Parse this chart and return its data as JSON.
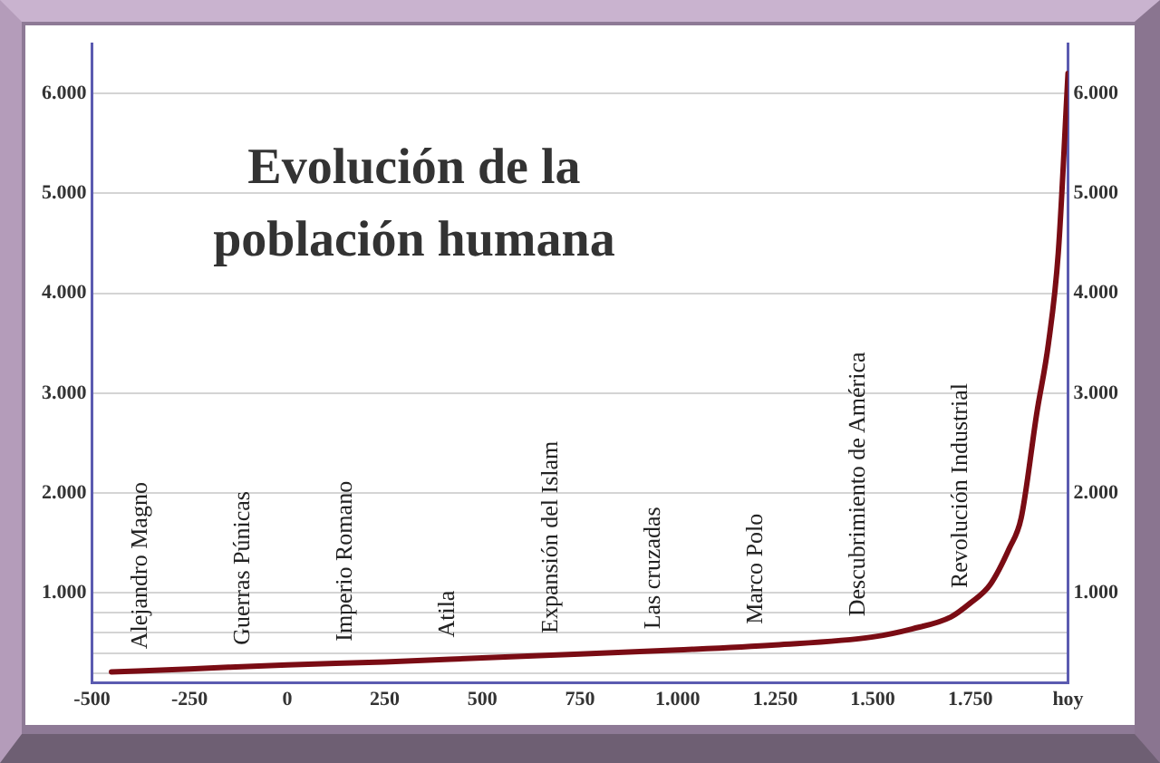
{
  "chart_data": {
    "type": "line",
    "title": "Evolución de la población humana",
    "x": [
      -450,
      -250,
      0,
      250,
      500,
      750,
      1000,
      1250,
      1500,
      1600,
      1700,
      1750,
      1800,
      1850,
      1880,
      1920,
      1950,
      1975,
      2000
    ],
    "series": [
      {
        "color": "#7a0c14",
        "values": [
          210,
          240,
          280,
          310,
          350,
          390,
          430,
          480,
          560,
          640,
          760,
          900,
          1080,
          1450,
          1750,
          2800,
          3500,
          4400,
          6200
        ]
      }
    ],
    "xlim": [
      -500,
      2000
    ],
    "xticks": [
      -500,
      -250,
      0,
      250,
      500,
      750,
      {
        "value": 1000,
        "label": "1.000"
      },
      {
        "value": 1250,
        "label": "1.250"
      },
      {
        "value": 1500,
        "label": "1.500"
      },
      {
        "value": 1750,
        "label": "1.750"
      },
      {
        "value": 2000,
        "label": "hoy"
      }
    ],
    "ylim": [
      100,
      6500
    ],
    "yticks": [
      {
        "value": 200,
        "label": null
      },
      {
        "value": 400,
        "label": null
      },
      {
        "value": 600,
        "label": null
      },
      {
        "value": 800,
        "label": null
      },
      {
        "value": 1000,
        "label": "1.000"
      },
      {
        "value": 2000,
        "label": "2.000"
      },
      {
        "value": 3000,
        "label": "3.000"
      },
      {
        "value": 4000,
        "label": "4.000"
      },
      {
        "value": 5000,
        "label": "5.000"
      },
      {
        "value": 6000,
        "label": "6.000"
      }
    ],
    "y2lim": [
      100,
      6500
    ],
    "y2ticks": [
      {
        "value": 1000,
        "label": "1.000"
      },
      {
        "value": 2000,
        "label": "2.000"
      },
      {
        "value": 3000,
        "label": "3.000"
      },
      {
        "value": 4000,
        "label": "4.000"
      },
      {
        "value": 5000,
        "label": "5.000"
      },
      {
        "value": 6000,
        "label": "6.000"
      }
    ],
    "annotations": [
      "Alejandro Magno",
      "Guerras Púnicas",
      "Imperio Romano",
      "Atila",
      "Expansión del Islam",
      "Las cruzadas",
      "Marco Polo",
      "Descubrimiento de América",
      "Revolución Industrial"
    ],
    "grid": "y",
    "legend": false,
    "marker": "none",
    "line_style": "solid"
  }
}
